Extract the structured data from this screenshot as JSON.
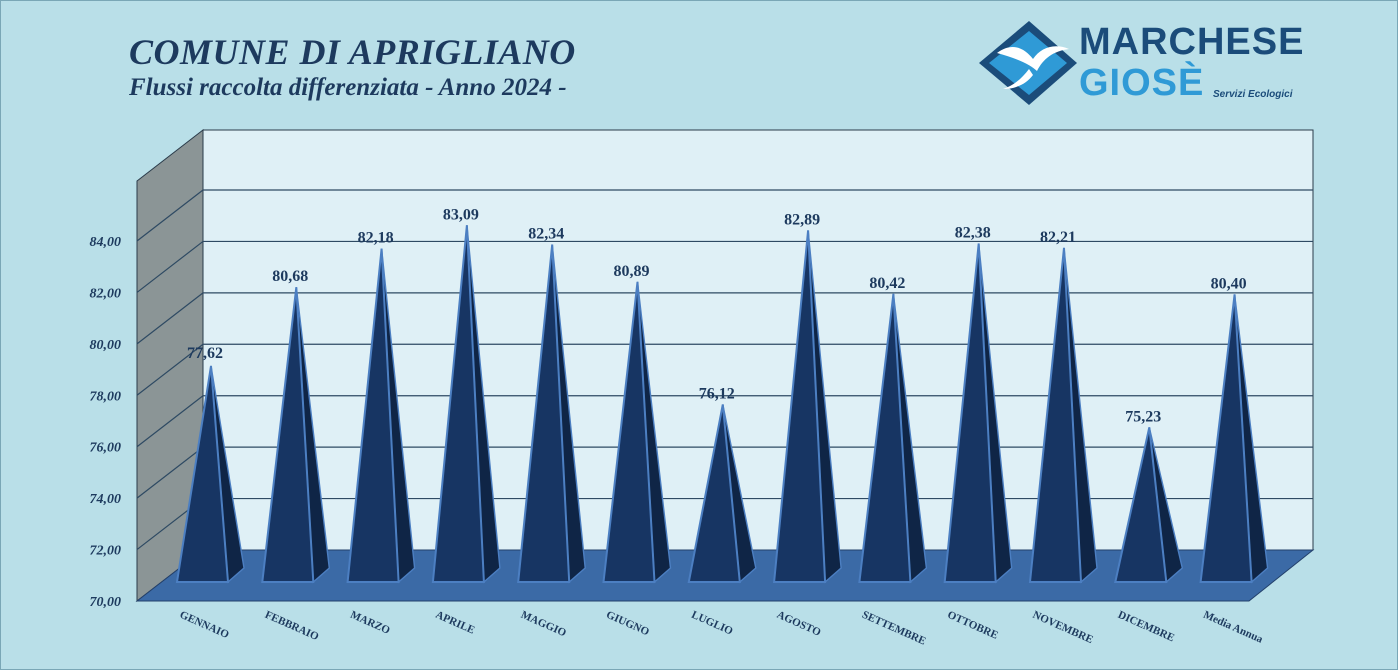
{
  "header": {
    "title": "COMUNE DI APRIGLIANO",
    "subtitle": "Flussi raccolta differenziata - Anno 2024 -"
  },
  "logo": {
    "line1": "MARCHESE",
    "line2": "GIOSÈ",
    "tagline": "Servizi Ecologici",
    "icon": "seagull-diamond-icon"
  },
  "colors": {
    "background": "#b9dfe8",
    "plot_wall": "#dff0f6",
    "side_wall": "#8b9596",
    "floor": "#3b6aa6",
    "pyramid_front": "#173563",
    "pyramid_side": "#0f2546",
    "pyramid_edge": "#4c7fc2",
    "text": "#1d3a5e"
  },
  "chart_data": {
    "type": "bar",
    "style": "3d-pyramid",
    "title": "COMUNE DI APRIGLIANO",
    "subtitle": "Flussi raccolta differenziata - Anno 2024 -",
    "categories": [
      "GENNAIO",
      "FEBBRAIO",
      "MARZO",
      "APRILE",
      "MAGGIO",
      "GIUGNO",
      "LUGLIO",
      "AGOSTO",
      "SETTEMBRE",
      "OTTOBRE",
      "NOVEMBRE",
      "DICEMBRE",
      "Media Annua"
    ],
    "values": [
      77.62,
      80.68,
      82.18,
      83.09,
      82.34,
      80.89,
      76.12,
      82.89,
      80.42,
      82.38,
      82.21,
      75.23,
      80.4
    ],
    "data_labels": [
      "77,62",
      "80,68",
      "82,18",
      "83,09",
      "82,34",
      "80,89",
      "76,12",
      "82,89",
      "80,42",
      "82,38",
      "82,21",
      "75,23",
      "80,40"
    ],
    "ylim": [
      70,
      84
    ],
    "yticks": [
      70,
      72,
      74,
      76,
      78,
      80,
      82,
      84
    ],
    "ytick_labels": [
      "70,00",
      "72,00",
      "74,00",
      "76,00",
      "78,00",
      "80,00",
      "82,00",
      "84,00"
    ],
    "grid": true,
    "legend": "none"
  }
}
